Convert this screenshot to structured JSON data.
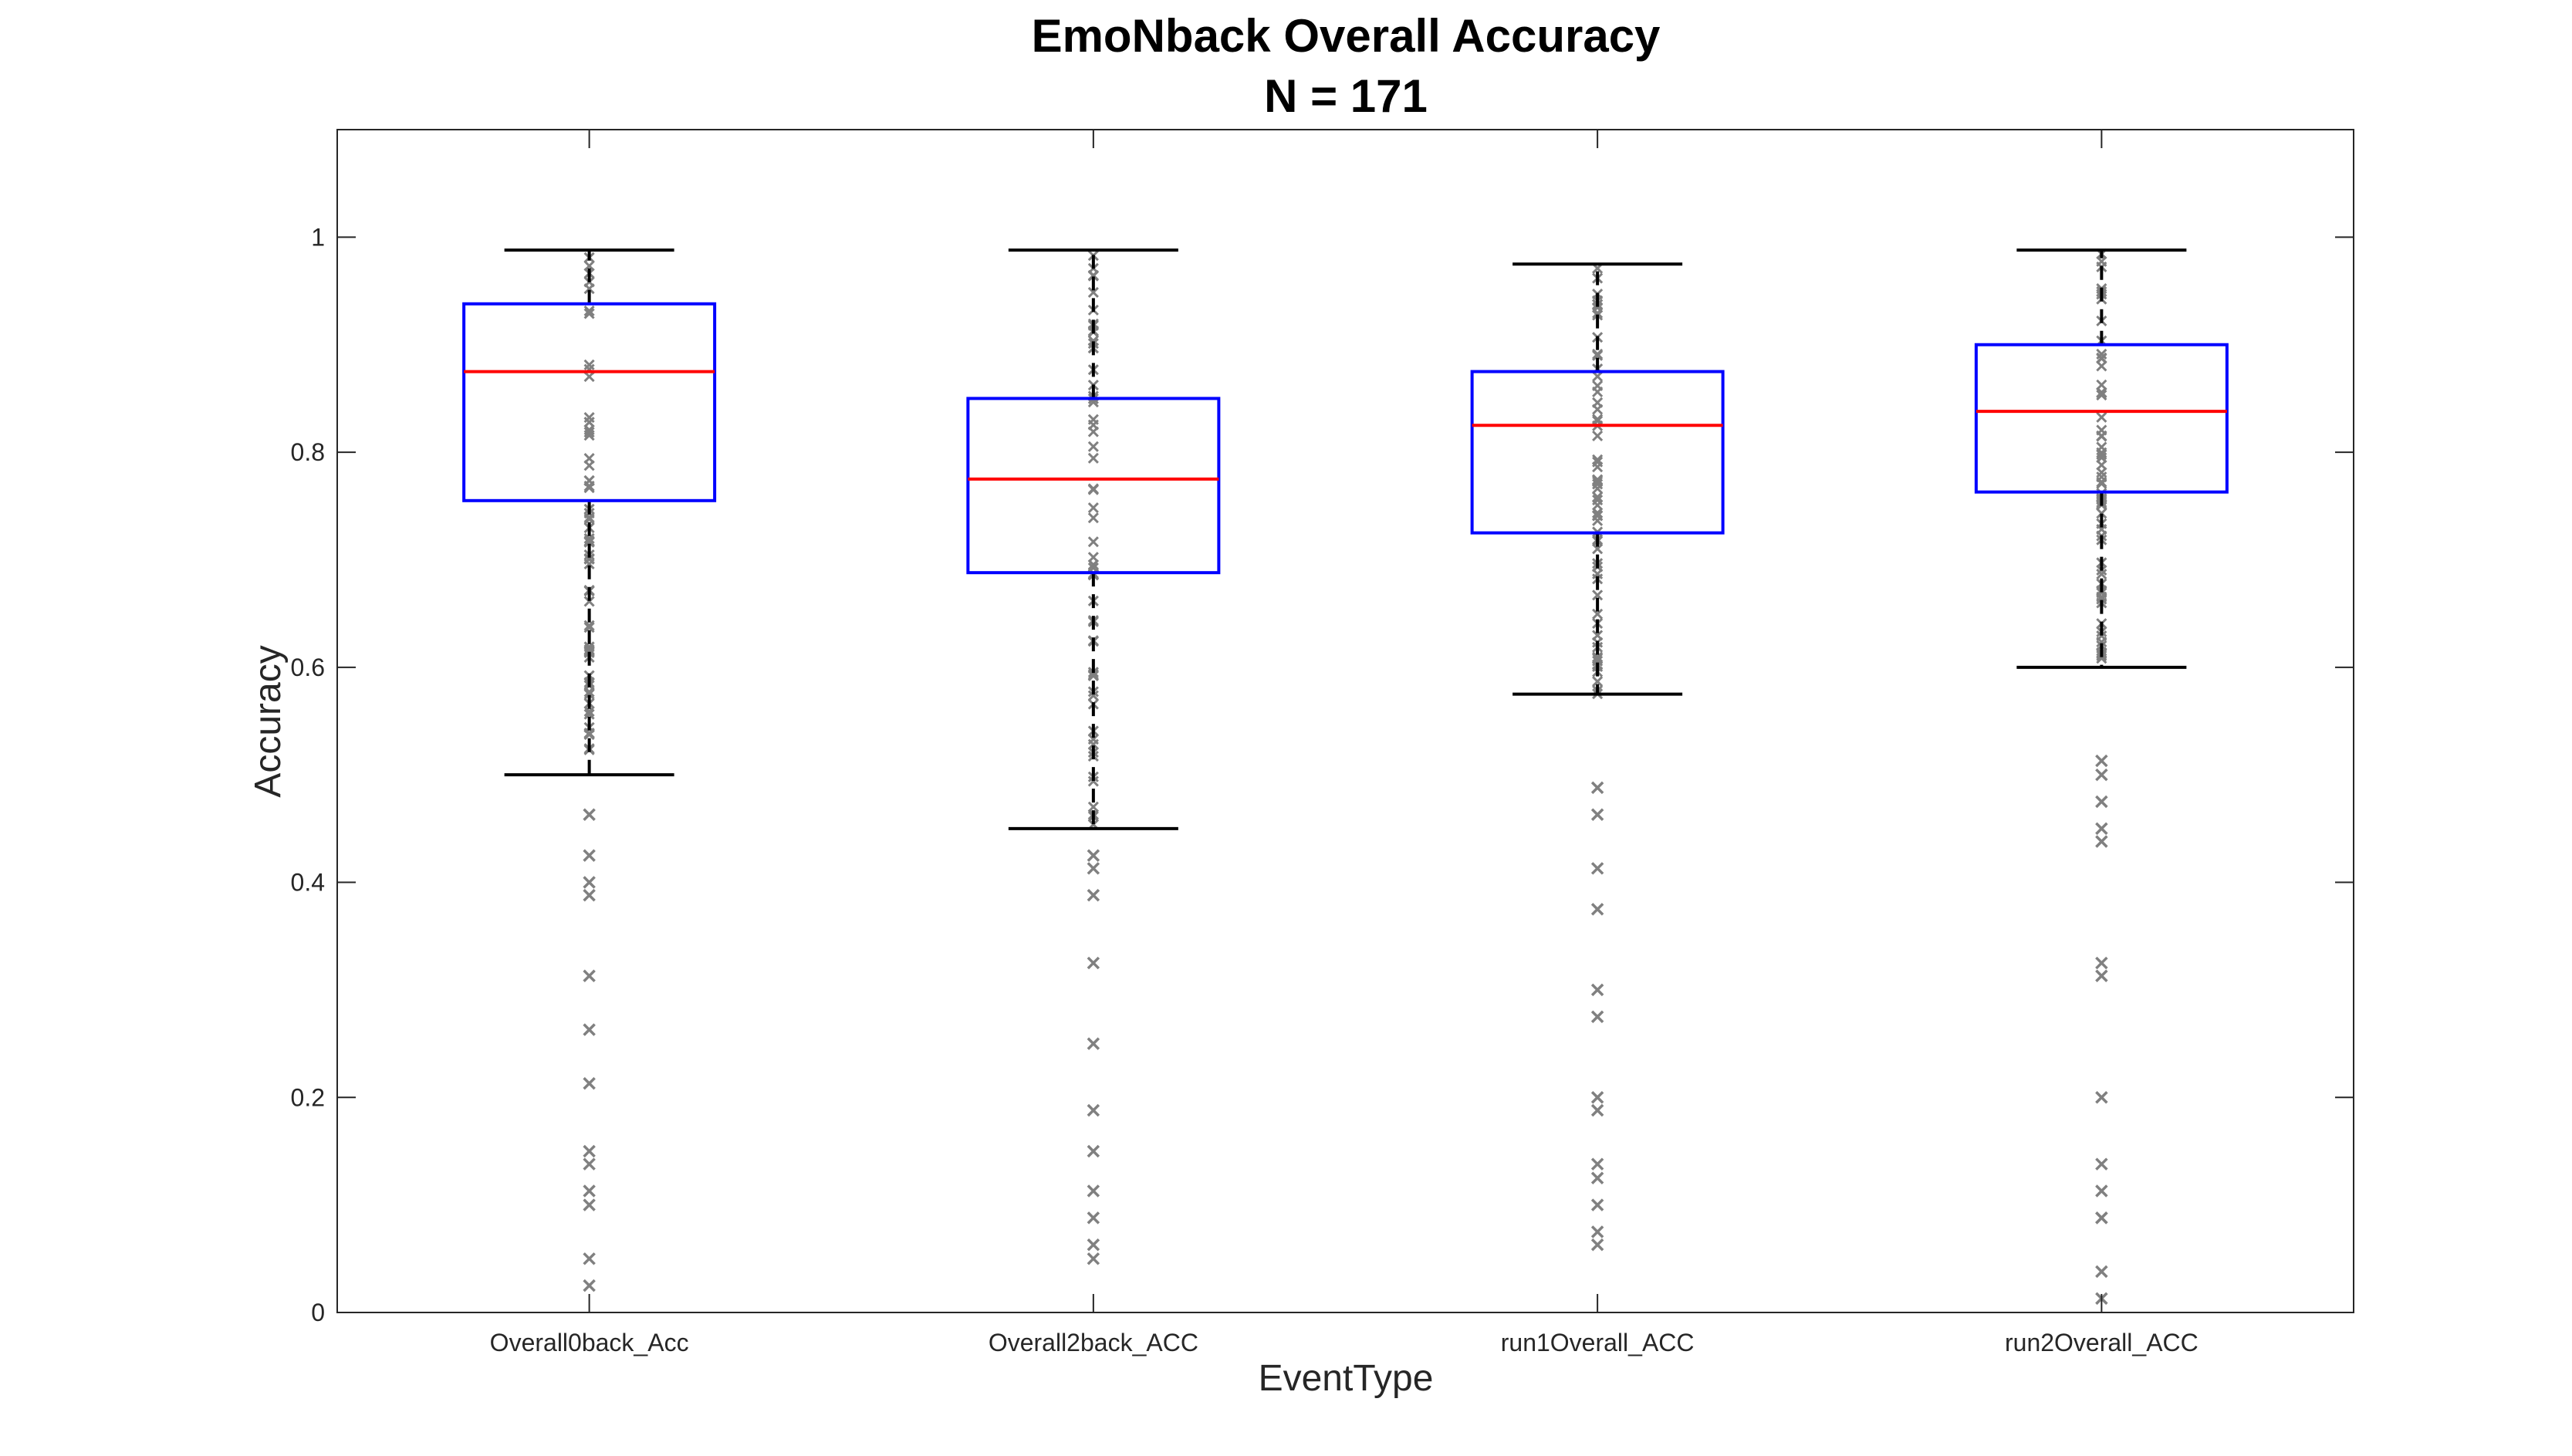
{
  "chart_data": {
    "type": "box",
    "title": "EmoNback Overall Accuracy",
    "subtitle": "N = 171",
    "xlabel": "EventType",
    "ylabel": "Accuracy",
    "ylim": [
      0,
      1.1
    ],
    "yticks": [
      0,
      0.2,
      0.4,
      0.6,
      0.8,
      1
    ],
    "ytick_labels": [
      "0",
      "0.2",
      "0.4",
      "0.6",
      "0.8",
      "1"
    ],
    "grid": false,
    "colors": {
      "box": "#0000ff",
      "median": "#ff0000",
      "whisker": "#000000",
      "points": "#808080"
    },
    "categories": [
      "Overall0back_Acc",
      "Overall2back_ACC",
      "run1Overall_ACC",
      "run2Overall_ACC"
    ],
    "boxes": [
      {
        "category": "Overall0back_Acc",
        "whisker_low": 0.5,
        "q1": 0.755,
        "median": 0.875,
        "q3": 0.938,
        "whisker_high": 0.988,
        "outliers": [
          0.463,
          0.425,
          0.4,
          0.388,
          0.313,
          0.263,
          0.213,
          0.15,
          0.138,
          0.113,
          0.1,
          0.05,
          0.025
        ]
      },
      {
        "category": "Overall2back_ACC",
        "whisker_low": 0.45,
        "q1": 0.688,
        "median": 0.775,
        "q3": 0.85,
        "whisker_high": 0.988,
        "outliers": [
          0.425,
          0.413,
          0.388,
          0.325,
          0.25,
          0.188,
          0.15,
          0.113,
          0.088,
          0.063,
          0.05
        ]
      },
      {
        "category": "run1Overall_ACC",
        "whisker_low": 0.575,
        "q1": 0.725,
        "median": 0.825,
        "q3": 0.875,
        "whisker_high": 0.975,
        "outliers": [
          0.488,
          0.463,
          0.413,
          0.375,
          0.3,
          0.275,
          0.2,
          0.188,
          0.138,
          0.125,
          0.1,
          0.075,
          0.063
        ]
      },
      {
        "category": "run2Overall_ACC",
        "whisker_low": 0.6,
        "q1": 0.763,
        "median": 0.838,
        "q3": 0.9,
        "whisker_high": 0.988,
        "outliers": [
          0.513,
          0.5,
          0.475,
          0.45,
          0.438,
          0.325,
          0.313,
          0.2,
          0.138,
          0.113,
          0.088,
          0.088,
          0.038,
          0.013
        ]
      }
    ]
  }
}
